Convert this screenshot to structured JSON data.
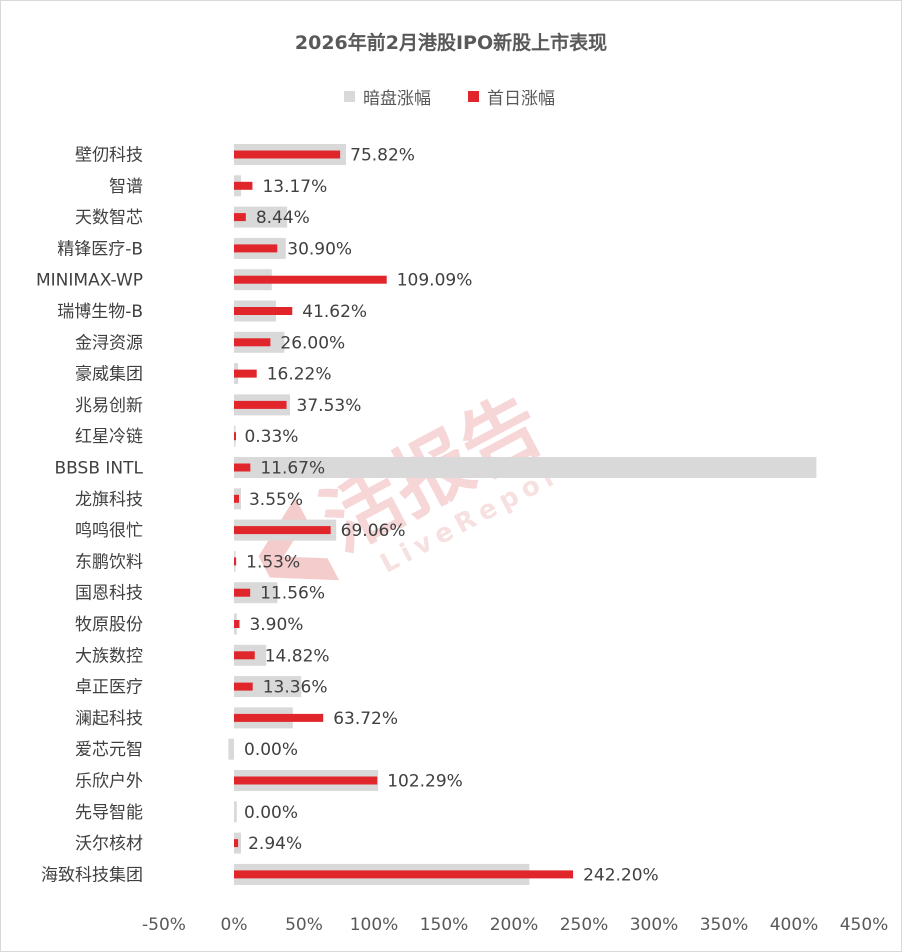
{
  "chart_data": {
    "type": "bar",
    "orientation": "horizontal",
    "title": "2026年前2月港股IPO新股上市表现",
    "categories": [
      "壁仞科技",
      "智谱",
      "天数智芯",
      "精锋医疗-B",
      "MINIMAX-WP",
      "瑞博生物-B",
      "金浔资源",
      "豪威集团",
      "兆易创新",
      "红星冷链",
      "BBSB INTL",
      "龙旗科技",
      "鸣鸣很忙",
      "东鹏饮料",
      "国恩科技",
      "牧原股份",
      "大族数控",
      "卓正医疗",
      "澜起科技",
      "爱芯元智",
      "乐欣户外",
      "先导智能",
      "沃尔核材",
      "海致科技集团"
    ],
    "series": [
      {
        "name": "暗盘涨幅",
        "color": "#d9d9d9",
        "values": [
          80,
          5,
          38,
          37,
          27,
          30,
          36,
          3,
          40,
          0.5,
          416,
          5,
          73,
          0.5,
          31,
          2,
          23,
          48,
          42,
          -4,
          103,
          2,
          5,
          211
        ]
      },
      {
        "name": "首日涨幅",
        "color": "#e1262b",
        "values": [
          75.82,
          13.17,
          8.44,
          30.9,
          109.09,
          41.62,
          26.0,
          16.22,
          37.53,
          0.33,
          11.67,
          3.55,
          69.06,
          1.53,
          11.56,
          3.9,
          14.82,
          13.36,
          63.72,
          0.0,
          102.29,
          0.0,
          2.94,
          242.2
        ]
      }
    ],
    "data_labels": [
      "75.82%",
      "13.17%",
      "8.44%",
      "30.90%",
      "109.09%",
      "41.62%",
      "26.00%",
      "16.22%",
      "37.53%",
      "0.33%",
      "11.67%",
      "3.55%",
      "69.06%",
      "1.53%",
      "11.56%",
      "3.90%",
      "14.82%",
      "13.36%",
      "63.72%",
      "0.00%",
      "102.29%",
      "0.00%",
      "2.94%",
      "242.20%"
    ],
    "x_ticks": [
      -50,
      0,
      50,
      100,
      150,
      200,
      250,
      300,
      350,
      400,
      450
    ],
    "x_tick_labels": [
      "-50%",
      "0%",
      "50%",
      "100%",
      "150%",
      "200%",
      "250%",
      "300%",
      "350%",
      "400%",
      "450%"
    ],
    "xlim": [
      -50,
      450
    ],
    "xlabel": "",
    "ylabel": "",
    "grid": false,
    "legend_position": "top-center"
  },
  "watermark": {
    "text": "活报告",
    "subtext": "LiveReport"
  }
}
